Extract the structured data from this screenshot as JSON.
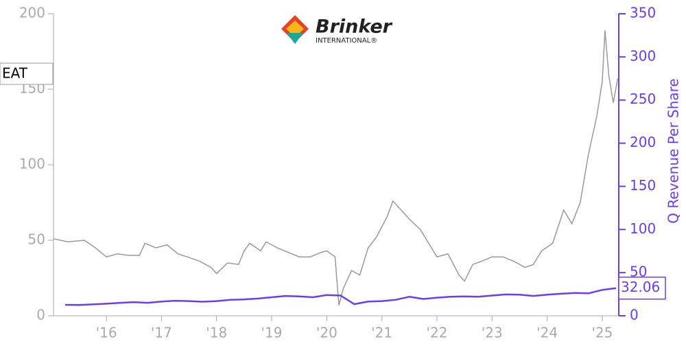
{
  "chart_data": {
    "type": "line",
    "logo": {
      "name": "Brinker",
      "sub": "INTERNATIONAL®"
    },
    "y2label": "Q Revenue Per Share",
    "xlim": [
      2015.04,
      2025.3
    ],
    "xticks": [
      {
        "value": 2016,
        "label": "'16"
      },
      {
        "value": 2017,
        "label": "'17"
      },
      {
        "value": 2018,
        "label": "'18"
      },
      {
        "value": 2019,
        "label": "'19"
      },
      {
        "value": 2020,
        "label": "'20"
      },
      {
        "value": 2021,
        "label": "'21"
      },
      {
        "value": 2022,
        "label": "'22"
      },
      {
        "value": 2023,
        "label": "'23"
      },
      {
        "value": 2024,
        "label": "'24"
      },
      {
        "value": 2025,
        "label": "'25"
      }
    ],
    "ylim": [
      0,
      200
    ],
    "yticks": [
      0,
      50,
      100,
      150,
      200
    ],
    "y2lim": [
      0,
      350
    ],
    "y2ticks": [
      0,
      50,
      100,
      150,
      200,
      250,
      300,
      350
    ],
    "series": [
      {
        "name": "EAT",
        "color": "#999999",
        "axis": "y",
        "x": [
          2015.04,
          2015.3,
          2015.6,
          2015.8,
          2016.0,
          2016.2,
          2016.4,
          2016.6,
          2016.7,
          2016.9,
          2017.1,
          2017.3,
          2017.5,
          2017.7,
          2017.9,
          2018.0,
          2018.2,
          2018.4,
          2018.5,
          2018.6,
          2018.8,
          2018.9,
          2019.1,
          2019.3,
          2019.5,
          2019.7,
          2019.9,
          2020.0,
          2020.15,
          2020.22,
          2020.3,
          2020.45,
          2020.6,
          2020.75,
          2020.9,
          2021.1,
          2021.2,
          2021.35,
          2021.5,
          2021.7,
          2021.85,
          2022.0,
          2022.2,
          2022.4,
          2022.5,
          2022.65,
          2022.8,
          2023.0,
          2023.2,
          2023.4,
          2023.6,
          2023.75,
          2023.9,
          2024.1,
          2024.3,
          2024.45,
          2024.6,
          2024.75,
          2024.9,
          2025.0,
          2025.05,
          2025.12,
          2025.2,
          2025.28
        ],
        "values": [
          51,
          49,
          50,
          45,
          39,
          41,
          40,
          40,
          48,
          45,
          47,
          41,
          38.6,
          36,
          32,
          28,
          35,
          34,
          43,
          48,
          43,
          49,
          45,
          42,
          39,
          39,
          42,
          43,
          39,
          7,
          18,
          30,
          27,
          45,
          52,
          66,
          76,
          70,
          64,
          57,
          48,
          39,
          41,
          27,
          23,
          34,
          36,
          39,
          39,
          36,
          32,
          34,
          43,
          48,
          70,
          61,
          75,
          107,
          132,
          155,
          189,
          159,
          141,
          157
        ]
      },
      {
        "name": "Q Revenue Per Share",
        "color": "#6b3cf0",
        "axis": "y2",
        "x": [
          2015.25,
          2015.5,
          2015.75,
          2016.0,
          2016.25,
          2016.5,
          2016.75,
          2017.0,
          2017.25,
          2017.5,
          2017.75,
          2018.0,
          2018.25,
          2018.5,
          2018.75,
          2019.0,
          2019.25,
          2019.5,
          2019.75,
          2020.0,
          2020.25,
          2020.5,
          2020.75,
          2021.0,
          2021.25,
          2021.5,
          2021.75,
          2022.0,
          2022.25,
          2022.5,
          2022.75,
          2023.0,
          2023.25,
          2023.5,
          2023.75,
          2024.0,
          2024.25,
          2024.5,
          2024.75,
          2025.0,
          2025.25
        ],
        "values": [
          12.7,
          12.5,
          13.2,
          14,
          15,
          15.8,
          15,
          16.5,
          17.4,
          17,
          16.3,
          17,
          18.5,
          19,
          20,
          21.5,
          23,
          22.5,
          21.5,
          24,
          23.5,
          13.5,
          16.5,
          17,
          18.5,
          22,
          19.5,
          21,
          22,
          22.5,
          22,
          23.5,
          24.7,
          24.5,
          23,
          24.5,
          25.5,
          26.5,
          26,
          30,
          32.06
        ]
      }
    ]
  }
}
